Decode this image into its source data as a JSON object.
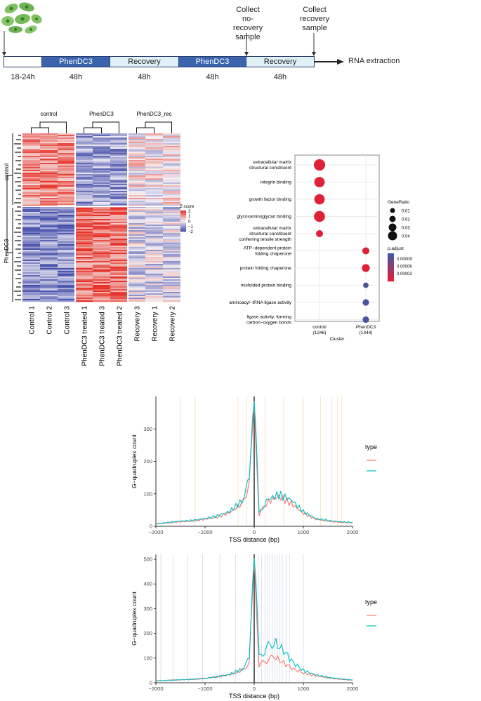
{
  "timeline": {
    "stages": [
      {
        "label": "",
        "duration": "18-24h",
        "color": "#ffffff",
        "text_color": "#222222"
      },
      {
        "label": "PhenDC3",
        "duration": "48h",
        "color": "#3b63ae",
        "text_color": "#ffffff"
      },
      {
        "label": "Recovery",
        "duration": "48h",
        "color": "#dff0f7",
        "text_color": "#222222"
      },
      {
        "label": "PhenDC3",
        "duration": "48h",
        "color": "#3b63ae",
        "text_color": "#ffffff"
      },
      {
        "label": "Recovery",
        "duration": "48h",
        "color": "#dff0f7",
        "text_color": "#222222"
      }
    ],
    "collect_no_recovery": [
      "Collect",
      "no-recovery",
      "sample"
    ],
    "collect_recovery": [
      "Collect",
      "recovery",
      "sample"
    ],
    "rna_extraction": "RNA extraction"
  },
  "heatmap": {
    "groups": [
      "control",
      "PhenDC3",
      "PhenDC3_rec"
    ],
    "row_groups": [
      "control",
      "PhenDC3"
    ],
    "columns": [
      "Control 1",
      "Control 2",
      "Control 3",
      "PhenDC3 treated 1",
      "PhenDC3 treated 3",
      "PhenDC3 treated 2",
      "Recovery 3",
      "Recovery 1",
      "Recovery 2"
    ],
    "legend_title": "Z-score",
    "legend_ticks": [
      "2",
      "1",
      "0",
      "−1",
      "−2"
    ]
  },
  "dotplot": {
    "terms": [
      {
        "line1": "extracellular matrix",
        "line2": "structural constituent",
        "line3": "",
        "cluster": 0,
        "ratio": 0.04,
        "padj": 5e-06
      },
      {
        "line1": "integrin binding",
        "line2": "",
        "line3": "",
        "cluster": 0,
        "ratio": 0.035,
        "padj": 5e-06
      },
      {
        "line1": "growth factor binding",
        "line2": "",
        "line3": "",
        "cluster": 0,
        "ratio": 0.035,
        "padj": 5e-06
      },
      {
        "line1": "glycosaminoglycan binding",
        "line2": "",
        "line3": "",
        "cluster": 0,
        "ratio": 0.038,
        "padj": 5e-06
      },
      {
        "line1": "extracellular matrix",
        "line2": "structural constituent",
        "line3": "conferring tensile strength",
        "cluster": 0,
        "ratio": 0.018,
        "padj": 5e-06
      },
      {
        "line1": "ATP−dependent protein",
        "line2": "folding chaperone",
        "line3": "",
        "cluster": 1,
        "ratio": 0.018,
        "padj": 5e-06
      },
      {
        "line1": "protein folding chaperone",
        "line2": "",
        "line3": "",
        "cluster": 1,
        "ratio": 0.022,
        "padj": 5e-06
      },
      {
        "line1": "misfolded protein binding",
        "line2": "",
        "line3": "",
        "cluster": 1,
        "ratio": 0.01,
        "padj": 0.00011
      },
      {
        "line1": "aminoacyl−tRNA ligase activity",
        "line2": "",
        "line3": "",
        "cluster": 1,
        "ratio": 0.015,
        "padj": 0.00011
      },
      {
        "line1": "ligase activity, forming",
        "line2": "carbon−oxygen bonds",
        "line3": "",
        "cluster": 1,
        "ratio": 0.015,
        "padj": 0.00011
      }
    ],
    "clusters": [
      {
        "name": "control",
        "count": "(1246)"
      },
      {
        "name": "PhenDC3",
        "count": "(1344)"
      }
    ],
    "xlabel": "Cluster",
    "legend_ratio_title": "GeneRatio",
    "legend_ratio_values": [
      "0.01",
      "0.02",
      "0.03",
      "0.04"
    ],
    "legend_padj_title": "p.adjust",
    "legend_padj_ticks": [
      "0.00009",
      "0.00006",
      "0.00003"
    ]
  },
  "chart_data": [
    {
      "type": "line",
      "xlabel": "TSS distance (bp)",
      "ylabel": "G−quadruplex count",
      "xlim": [
        -2000,
        2000
      ],
      "ylim": [
        0,
        400
      ],
      "x_ticks": [
        "−2000",
        "−1000",
        "0",
        "1000",
        "2000"
      ],
      "y_ticks": [
        "0",
        "100",
        "200",
        "300"
      ],
      "legend_title": "type",
      "series_colors": [
        "#f8766d",
        "#00bfc4"
      ],
      "x": [
        -2000,
        -1750,
        -1500,
        -1250,
        -1000,
        -750,
        -500,
        -250,
        -100,
        0,
        100,
        250,
        500,
        750,
        1000,
        1250,
        1500,
        1750,
        2000
      ],
      "series": [
        {
          "name": "",
          "values": [
            8,
            10,
            14,
            16,
            22,
            28,
            42,
            70,
            130,
            375,
            35,
            72,
            92,
            70,
            40,
            22,
            16,
            12,
            10
          ]
        },
        {
          "name": "",
          "values": [
            8,
            12,
            16,
            18,
            24,
            32,
            46,
            78,
            140,
            385,
            38,
            80,
            98,
            82,
            45,
            24,
            18,
            14,
            12
          ]
        }
      ],
      "vlines": [
        -1500,
        -1200,
        -330,
        -150,
        220,
        600,
        1000,
        1350,
        1580,
        1700,
        1780
      ]
    },
    {
      "type": "line",
      "xlabel": "TSS distance (bp)",
      "ylabel": "G−quadruplex count",
      "xlim": [
        -2000,
        2000
      ],
      "ylim": [
        0,
        520
      ],
      "x_ticks": [
        "−2000",
        "−1000",
        "0",
        "1000",
        "2000"
      ],
      "y_ticks": [
        "0",
        "100",
        "200",
        "300",
        "400",
        "500"
      ],
      "legend_title": "type",
      "series_colors": [
        "#f8766d",
        "#00bfc4"
      ],
      "x": [
        -2000,
        -1750,
        -1500,
        -1250,
        -1000,
        -750,
        -500,
        -250,
        -100,
        0,
        100,
        250,
        400,
        600,
        800,
        1000,
        1250,
        1500,
        1750,
        2000
      ],
      "series": [
        {
          "name": "",
          "values": [
            8,
            10,
            12,
            14,
            18,
            24,
            32,
            50,
            80,
            495,
            70,
            90,
            105,
            80,
            55,
            40,
            28,
            20,
            14,
            10
          ]
        },
        {
          "name": "",
          "values": [
            8,
            10,
            12,
            14,
            18,
            25,
            34,
            55,
            95,
            505,
            100,
            140,
            165,
            130,
            80,
            50,
            32,
            22,
            16,
            12
          ]
        }
      ],
      "vlines": [
        -1900,
        -1650,
        -1350,
        -1050,
        -700,
        -380,
        80,
        150,
        220,
        270,
        320,
        370,
        420,
        470,
        520,
        570,
        650,
        720,
        1000
      ]
    }
  ]
}
